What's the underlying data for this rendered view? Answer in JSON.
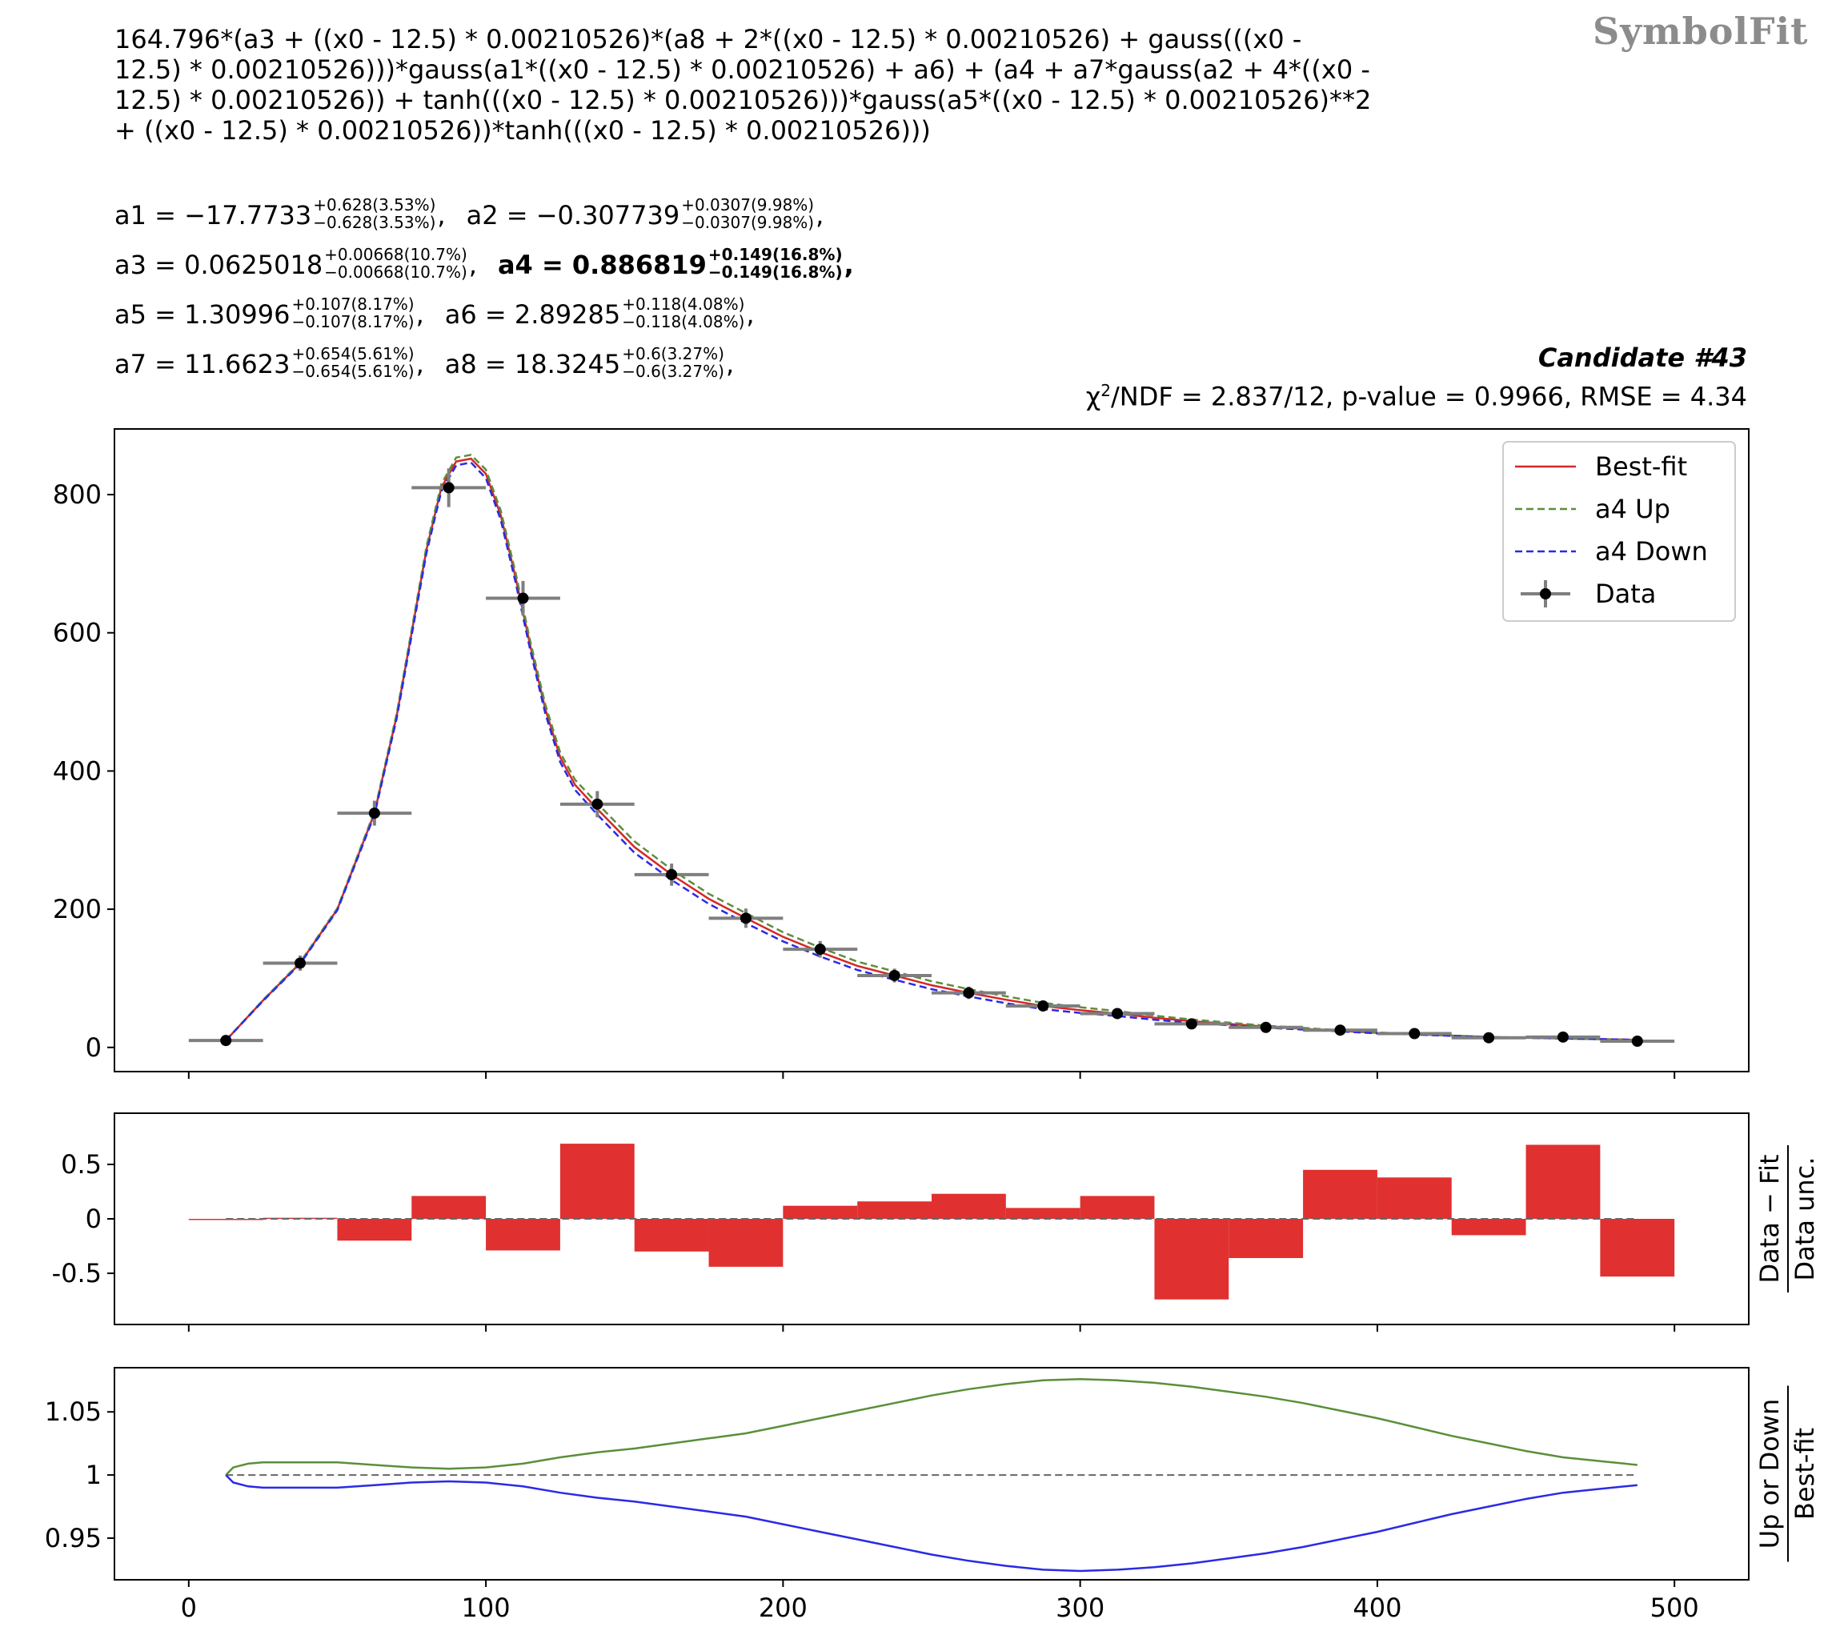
{
  "header": {
    "logo": "SymbolFit",
    "formula": "164.796*(a3 + ((x0 - 12.5) * 0.00210526)*(a8 + 2*((x0 - 12.5) * 0.00210526) + gauss(((x0 -\n12.5) * 0.00210526)))*gauss(a1*((x0 - 12.5) * 0.00210526) + a6) + (a4 + a7*gauss(a2 + 4*((x0 -\n12.5) * 0.00210526)) + tanh(((x0 - 12.5) * 0.00210526)))*gauss(a5*((x0 - 12.5) * 0.00210526)**2\n+ ((x0 - 12.5) * 0.00210526))*tanh(((x0 - 12.5) * 0.00210526)))",
    "candidate": "Candidate #43",
    "chi_symbol": "χ",
    "chi_sup": "2",
    "stats_text": "/NDF = 2.837/12, p-value = 0.9966, RMSE = 4.34"
  },
  "params": [
    [
      {
        "name": "a1",
        "value": "−17.7733",
        "up": "+0.628(3.53%)",
        "down": "−0.628(3.53%)",
        "bold": false
      },
      {
        "name": "a2",
        "value": "−0.307739",
        "up": "+0.0307(9.98%)",
        "down": "−0.0307(9.98%)",
        "bold": false
      }
    ],
    [
      {
        "name": "a3",
        "value": "0.0625018",
        "up": "+0.00668(10.7%)",
        "down": "−0.00668(10.7%)",
        "bold": false
      },
      {
        "name": "a4",
        "value": "0.886819",
        "up": "+0.149(16.8%)",
        "down": "−0.149(16.8%)",
        "bold": true
      }
    ],
    [
      {
        "name": "a5",
        "value": "1.30996",
        "up": "+0.107(8.17%)",
        "down": "−0.107(8.17%)",
        "bold": false
      },
      {
        "name": "a6",
        "value": "2.89285",
        "up": "+0.118(4.08%)",
        "down": "−0.118(4.08%)",
        "bold": false
      }
    ],
    [
      {
        "name": "a7",
        "value": "11.6623",
        "up": "+0.654(5.61%)",
        "down": "−0.654(5.61%)",
        "bold": false
      },
      {
        "name": "a8",
        "value": "18.3245",
        "up": "+0.6(3.27%)",
        "down": "−0.6(3.27%)",
        "bold": false
      }
    ]
  ],
  "chart_data": [
    {
      "type": "line",
      "panel": "main",
      "xlim": [
        -25,
        525
      ],
      "ylim": [
        -35,
        895
      ],
      "yticks": [
        0,
        200,
        400,
        600,
        800
      ],
      "ytick_labels": [
        "0",
        "200",
        "400",
        "600",
        "800"
      ],
      "xticks": [
        0,
        100,
        200,
        300,
        400,
        500
      ],
      "legend": {
        "placement": "top-right",
        "entries": [
          "Best-fit",
          "a4 Up",
          "a4 Down",
          "Data"
        ]
      },
      "colors": {
        "best": "#d62728",
        "up": "#5a8f3a",
        "down": "#2a2ae6",
        "data": "#000000",
        "xerr": "#7f7f7f"
      },
      "data": {
        "name": "Data",
        "x": [
          12.5,
          37.5,
          62.5,
          87.5,
          112.5,
          137.5,
          162.5,
          187.5,
          212.5,
          237.5,
          262.5,
          287.5,
          312.5,
          337.5,
          362.5,
          387.5,
          412.5,
          437.5,
          462.5,
          487.5
        ],
        "y": [
          10,
          122,
          339,
          810,
          650,
          352,
          250,
          187,
          142,
          104,
          79,
          60,
          49,
          34,
          29,
          25,
          20,
          14,
          15,
          9
        ],
        "yerr": [
          3,
          11,
          18,
          28,
          25,
          19,
          16,
          14,
          12,
          10,
          9,
          8,
          7,
          6,
          5,
          5,
          4.5,
          3.7,
          3.9,
          3
        ],
        "xerr": 12.5
      },
      "series": [
        {
          "name": "Best-fit",
          "x": [
            12.5,
            25,
            37.5,
            50,
            62.5,
            70,
            75,
            80,
            85,
            90,
            95,
            100,
            105,
            110,
            115,
            120,
            125,
            130,
            137.5,
            150,
            162.5,
            175,
            187.5,
            200,
            212.5,
            225,
            237.5,
            250,
            262.5,
            275,
            287.5,
            300,
            312.5,
            325,
            337.5,
            350,
            362.5,
            375,
            387.5,
            400,
            412.5,
            425,
            437.5,
            450,
            462.5,
            475,
            487.5
          ],
          "y": [
            10,
            68,
            122,
            200,
            339,
            480,
            600,
            720,
            810,
            848,
            852,
            830,
            770,
            680,
            580,
            490,
            420,
            380,
            345,
            290,
            250,
            215,
            187,
            160,
            138,
            118,
            104,
            90,
            79,
            69,
            60,
            54,
            49,
            43,
            38,
            34,
            30,
            27,
            24,
            21,
            19,
            17,
            15,
            14,
            13,
            12,
            11
          ]
        },
        {
          "name": "a4 Up",
          "x": [
            12.5,
            25,
            37.5,
            50,
            62.5,
            70,
            75,
            80,
            85,
            90,
            95,
            100,
            105,
            110,
            115,
            120,
            125,
            130,
            137.5,
            150,
            162.5,
            175,
            187.5,
            200,
            212.5,
            225,
            237.5,
            250,
            262.5,
            275,
            287.5,
            300,
            312.5,
            325,
            337.5,
            350,
            362.5,
            375,
            387.5,
            400,
            412.5,
            425,
            437.5,
            450,
            462.5,
            475,
            487.5
          ],
          "y": [
            10,
            68.7,
            123.2,
            201.4,
            341.4,
            483.4,
            604.2,
            724.7,
            815.2,
            853.7,
            857.5,
            836.2,
            776.8,
            686.9,
            586.4,
            496.5,
            426.9,
            387.3,
            353.1,
            298.2,
            257.6,
            222.3,
            194.3,
            166.6,
            144.5,
            124.1,
            110.0,
            95.7,
            84.3,
            74.0,
            64.5,
            58.1,
            52.6,
            46.0,
            40.4,
            35.9,
            31.5,
            28.2,
            24.8,
            21.6,
            19.4,
            17.2,
            15.1,
            14.0,
            12.9,
            11.8,
            10.8
          ]
        },
        {
          "name": "a4 Down",
          "x": [
            12.5,
            25,
            37.5,
            50,
            62.5,
            70,
            75,
            80,
            85,
            90,
            95,
            100,
            105,
            110,
            115,
            120,
            125,
            130,
            137.5,
            150,
            162.5,
            175,
            187.5,
            200,
            212.5,
            225,
            237.5,
            250,
            262.5,
            275,
            287.5,
            300,
            312.5,
            325,
            337.5,
            350,
            362.5,
            375,
            387.5,
            400,
            412.5,
            425,
            437.5,
            450,
            462.5,
            475,
            487.5
          ],
          "y": [
            10,
            67.3,
            120.8,
            198.6,
            336.6,
            476.6,
            595.8,
            715.3,
            804.8,
            842.3,
            846.5,
            823.8,
            763.2,
            673.1,
            573.6,
            483.5,
            413.1,
            372.7,
            336.9,
            281.8,
            242.4,
            207.7,
            179.7,
            153.4,
            131.5,
            112.1,
            98.0,
            84.3,
            73.7,
            64.0,
            55.5,
            49.9,
            45.4,
            40.0,
            35.6,
            32.1,
            28.5,
            25.8,
            23.2,
            20.4,
            18.6,
            16.8,
            14.9,
            13.9,
            12.9,
            11.9,
            10.9
          ]
        }
      ]
    },
    {
      "type": "bar",
      "panel": "residual",
      "ylabel": "Data − Fit / Data unc.",
      "ylabel_top": "Data − Fit",
      "ylabel_bottom": "Data unc.",
      "xlim": [
        -25,
        525
      ],
      "ylim": [
        -0.97,
        0.97
      ],
      "yticks": [
        -0.5,
        0,
        0.5
      ],
      "ytick_labels": [
        "-0.5",
        "0",
        "0.5"
      ],
      "xticks": [
        0,
        100,
        200,
        300,
        400,
        500
      ],
      "bin_edges": [
        0,
        25,
        50,
        75,
        100,
        125,
        150,
        175,
        200,
        225,
        250,
        275,
        300,
        325,
        350,
        375,
        400,
        425,
        450,
        475,
        500
      ],
      "values": [
        -0.01,
        0.01,
        -0.2,
        0.21,
        -0.29,
        0.69,
        -0.3,
        -0.44,
        0.12,
        0.16,
        0.23,
        0.1,
        0.21,
        -0.74,
        -0.36,
        0.45,
        0.38,
        -0.15,
        0.68,
        -0.53
      ],
      "color": "#e03030"
    },
    {
      "type": "line",
      "panel": "ratio",
      "ylabel": "Up or Down / Best-fit",
      "ylabel_top": "Up or Down",
      "ylabel_bottom": "Best-fit",
      "xlim": [
        -25,
        525
      ],
      "ylim": [
        0.917,
        1.085
      ],
      "yticks": [
        0.95,
        1,
        1.05
      ],
      "ytick_labels": [
        "0.95",
        "1",
        "1.05"
      ],
      "xticks": [
        0,
        100,
        200,
        300,
        400,
        500
      ],
      "xtick_labels": [
        "0",
        "100",
        "200",
        "300",
        "400",
        "500"
      ],
      "series": [
        {
          "name": "a4 Up",
          "color": "#5a8f3a",
          "x": [
            12.5,
            15,
            20,
            25,
            37.5,
            50,
            62.5,
            75,
            87.5,
            100,
            112.5,
            125,
            137.5,
            150,
            162.5,
            175,
            187.5,
            200,
            212.5,
            225,
            237.5,
            250,
            262.5,
            275,
            287.5,
            300,
            312.5,
            325,
            337.5,
            350,
            362.5,
            375,
            387.5,
            400,
            412.5,
            425,
            437.5,
            450,
            462.5,
            475,
            487.5
          ],
          "y": [
            1.0,
            1.006,
            1.009,
            1.01,
            1.01,
            1.01,
            1.008,
            1.006,
            1.005,
            1.006,
            1.009,
            1.014,
            1.018,
            1.021,
            1.025,
            1.029,
            1.033,
            1.039,
            1.045,
            1.051,
            1.057,
            1.063,
            1.068,
            1.072,
            1.075,
            1.076,
            1.075,
            1.073,
            1.07,
            1.066,
            1.062,
            1.057,
            1.051,
            1.045,
            1.038,
            1.031,
            1.025,
            1.019,
            1.014,
            1.011,
            1.008
          ]
        },
        {
          "name": "a4 Down",
          "color": "#2a2ae6",
          "x": [
            12.5,
            15,
            20,
            25,
            37.5,
            50,
            62.5,
            75,
            87.5,
            100,
            112.5,
            125,
            137.5,
            150,
            162.5,
            175,
            187.5,
            200,
            212.5,
            225,
            237.5,
            250,
            262.5,
            275,
            287.5,
            300,
            312.5,
            325,
            337.5,
            350,
            362.5,
            375,
            387.5,
            400,
            412.5,
            425,
            437.5,
            450,
            462.5,
            475,
            487.5
          ],
          "y": [
            1.0,
            0.994,
            0.991,
            0.99,
            0.99,
            0.99,
            0.992,
            0.994,
            0.995,
            0.994,
            0.991,
            0.986,
            0.982,
            0.979,
            0.975,
            0.971,
            0.967,
            0.961,
            0.955,
            0.949,
            0.943,
            0.937,
            0.932,
            0.928,
            0.925,
            0.924,
            0.925,
            0.927,
            0.93,
            0.934,
            0.938,
            0.943,
            0.949,
            0.955,
            0.962,
            0.969,
            0.975,
            0.981,
            0.986,
            0.989,
            0.992
          ]
        }
      ],
      "reference": 1
    }
  ]
}
